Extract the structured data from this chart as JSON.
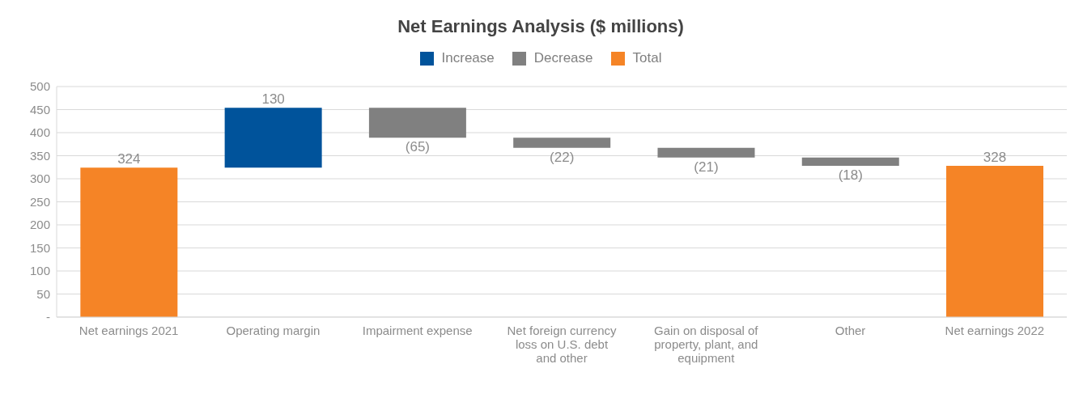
{
  "chart_data": {
    "type": "bar",
    "title": "Net Earnings Analysis ($ millions)",
    "categories": [
      "Net earnings 2021",
      "Operating margin",
      "Impairment expense",
      "Net foreign currency loss on U.S. debt and other",
      "Gain on disposal of property, plant, and equipment",
      "Other",
      "Net earnings 2022"
    ],
    "series": [
      {
        "name": "Increase",
        "color": "#00539b",
        "values": [
          null,
          130,
          null,
          null,
          null,
          null,
          null
        ],
        "base": [
          null,
          324,
          null,
          null,
          null,
          null,
          null
        ],
        "value_labels": [
          null,
          "130",
          null,
          null,
          null,
          null,
          null
        ]
      },
      {
        "name": "Decrease",
        "color": "#808080",
        "values": [
          null,
          null,
          -65,
          -22,
          -21,
          -18,
          null
        ],
        "base": [
          null,
          null,
          454,
          389,
          367,
          346,
          null
        ],
        "value_labels": [
          null,
          null,
          "(65)",
          "(22)",
          "(21)",
          "(18)",
          null
        ]
      },
      {
        "name": "Total",
        "color": "#f58426",
        "values": [
          324,
          null,
          null,
          null,
          null,
          null,
          328
        ],
        "base": [
          0,
          null,
          null,
          null,
          null,
          null,
          0
        ],
        "value_labels": [
          "324",
          null,
          null,
          null,
          null,
          null,
          "328"
        ]
      }
    ],
    "ylim": [
      0,
      500
    ],
    "yticks": [
      {
        "value": 0,
        "label": "-"
      },
      50,
      100,
      150,
      200,
      250,
      300,
      350,
      400,
      450,
      500
    ],
    "grid": "y",
    "legend": "top"
  }
}
